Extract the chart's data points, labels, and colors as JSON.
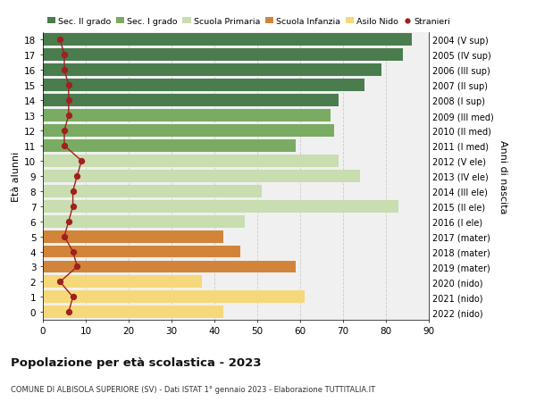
{
  "ages": [
    18,
    17,
    16,
    15,
    14,
    13,
    12,
    11,
    10,
    9,
    8,
    7,
    6,
    5,
    4,
    3,
    2,
    1,
    0
  ],
  "right_labels": [
    "2004 (V sup)",
    "2005 (IV sup)",
    "2006 (III sup)",
    "2007 (II sup)",
    "2008 (I sup)",
    "2009 (III med)",
    "2010 (II med)",
    "2011 (I med)",
    "2012 (V ele)",
    "2013 (IV ele)",
    "2014 (III ele)",
    "2015 (II ele)",
    "2016 (I ele)",
    "2017 (mater)",
    "2018 (mater)",
    "2019 (mater)",
    "2020 (nido)",
    "2021 (nido)",
    "2022 (nido)"
  ],
  "bar_values": [
    86,
    84,
    79,
    75,
    69,
    67,
    68,
    59,
    69,
    74,
    51,
    83,
    47,
    42,
    46,
    59,
    37,
    61,
    42
  ],
  "bar_colors": [
    "#4a7c4e",
    "#4a7c4e",
    "#4a7c4e",
    "#4a7c4e",
    "#4a7c4e",
    "#7aab62",
    "#7aab62",
    "#7aab62",
    "#c8ddb0",
    "#c8ddb0",
    "#c8ddb0",
    "#c8ddb0",
    "#c8ddb0",
    "#d2853a",
    "#d2853a",
    "#d2853a",
    "#f5d87a",
    "#f5d87a",
    "#f5d87a"
  ],
  "stranieri_values": [
    4,
    5,
    5,
    6,
    6,
    6,
    5,
    5,
    9,
    8,
    7,
    7,
    6,
    5,
    7,
    8,
    4,
    7,
    6
  ],
  "legend_labels": [
    "Sec. II grado",
    "Sec. I grado",
    "Scuola Primaria",
    "Scuola Infanzia",
    "Asilo Nido",
    "Stranieri"
  ],
  "legend_colors": [
    "#4a7c4e",
    "#7aab62",
    "#c8ddb0",
    "#d2853a",
    "#f5d87a",
    "#a02020"
  ],
  "title": "Popolazione per età scolastica - 2023",
  "subtitle": "COMUNE DI ALBISOLA SUPERIORE (SV) - Dati ISTAT 1° gennaio 2023 - Elaborazione TUTTITALIA.IT",
  "ylabel_left": "Età alunni",
  "ylabel_right": "Anni di nascita",
  "xlim": [
    0,
    90
  ],
  "xticks": [
    0,
    10,
    20,
    30,
    40,
    50,
    60,
    70,
    80,
    90
  ],
  "background_color": "#ffffff",
  "bar_bg_color": "#f0f0f0"
}
